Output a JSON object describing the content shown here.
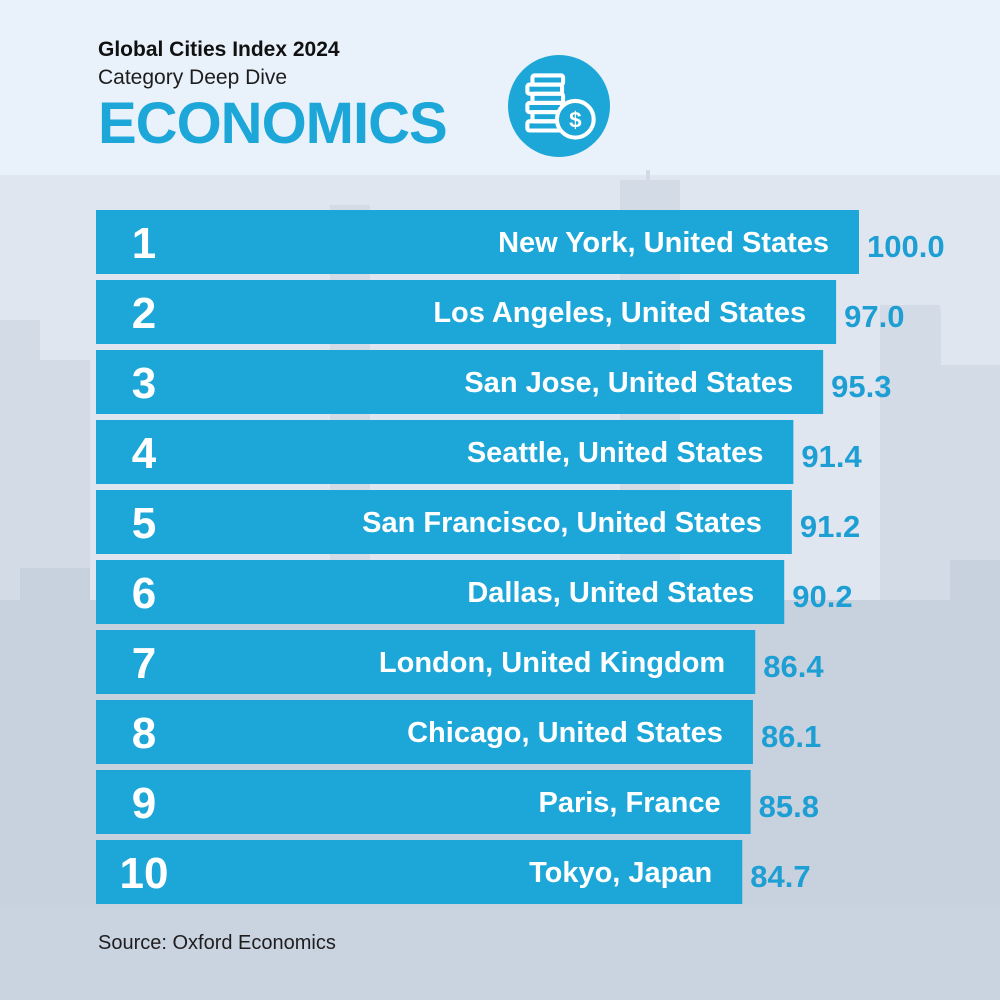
{
  "header": {
    "brand": "Global Cities Index 2024",
    "subtitle": "Category Deep Dive",
    "category": "ECONOMICS",
    "icon": "coins-dollar-icon"
  },
  "colors": {
    "accent": "#1ca7d8",
    "value_text": "#1d9fd4",
    "background": "#e9f1fb",
    "skyline": "#c9d3e0",
    "skyline_dark": "#bcc6d4"
  },
  "chart_data": {
    "type": "bar",
    "orientation": "horizontal",
    "title": "ECONOMICS",
    "xlabel": "",
    "ylabel": "",
    "xlim": [
      0,
      100
    ],
    "categories": [
      "New York, United States",
      "Los Angeles, United States",
      "San Jose, United States",
      "Seattle, United States",
      "San Francisco, United States",
      "Dallas, United States",
      "London, United Kingdom",
      "Chicago, United States",
      "Paris, France",
      "Tokyo, Japan"
    ],
    "ranks": [
      "1",
      "2",
      "3",
      "4",
      "5",
      "6",
      "7",
      "8",
      "9",
      "10"
    ],
    "values": [
      100.0,
      97.0,
      95.3,
      91.4,
      91.2,
      90.2,
      86.4,
      86.1,
      85.8,
      84.7
    ],
    "value_labels": [
      "100.0",
      "97.0",
      "95.3",
      "91.4",
      "91.2",
      "90.2",
      "86.4",
      "86.1",
      "85.8",
      "84.7"
    ]
  },
  "footer": {
    "source": "Source: Oxford Economics"
  }
}
